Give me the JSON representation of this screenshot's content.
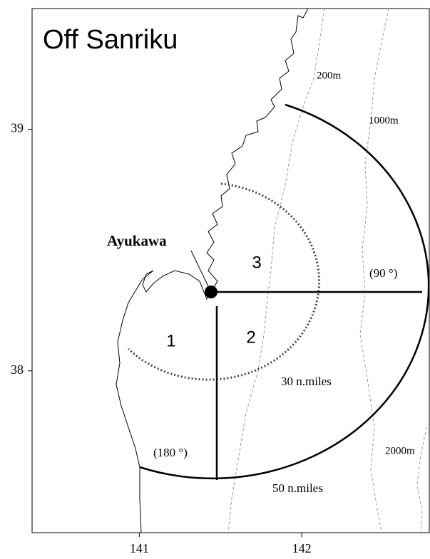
{
  "map": {
    "title": "Off Sanriku",
    "xlim": [
      140.34,
      142.785
    ],
    "ylim": [
      37.33,
      39.5
    ],
    "xticks": [
      141,
      142
    ],
    "yticks": [
      38,
      39
    ],
    "place": "Ayukawa",
    "areas": [
      "1",
      "2",
      "3"
    ],
    "bearings": [
      "(90 °)",
      "(180 °)"
    ],
    "ranges": [
      "30 n.miles",
      "50 n.miles"
    ],
    "depths": [
      "200m",
      "1000m",
      "2000m"
    ]
  }
}
